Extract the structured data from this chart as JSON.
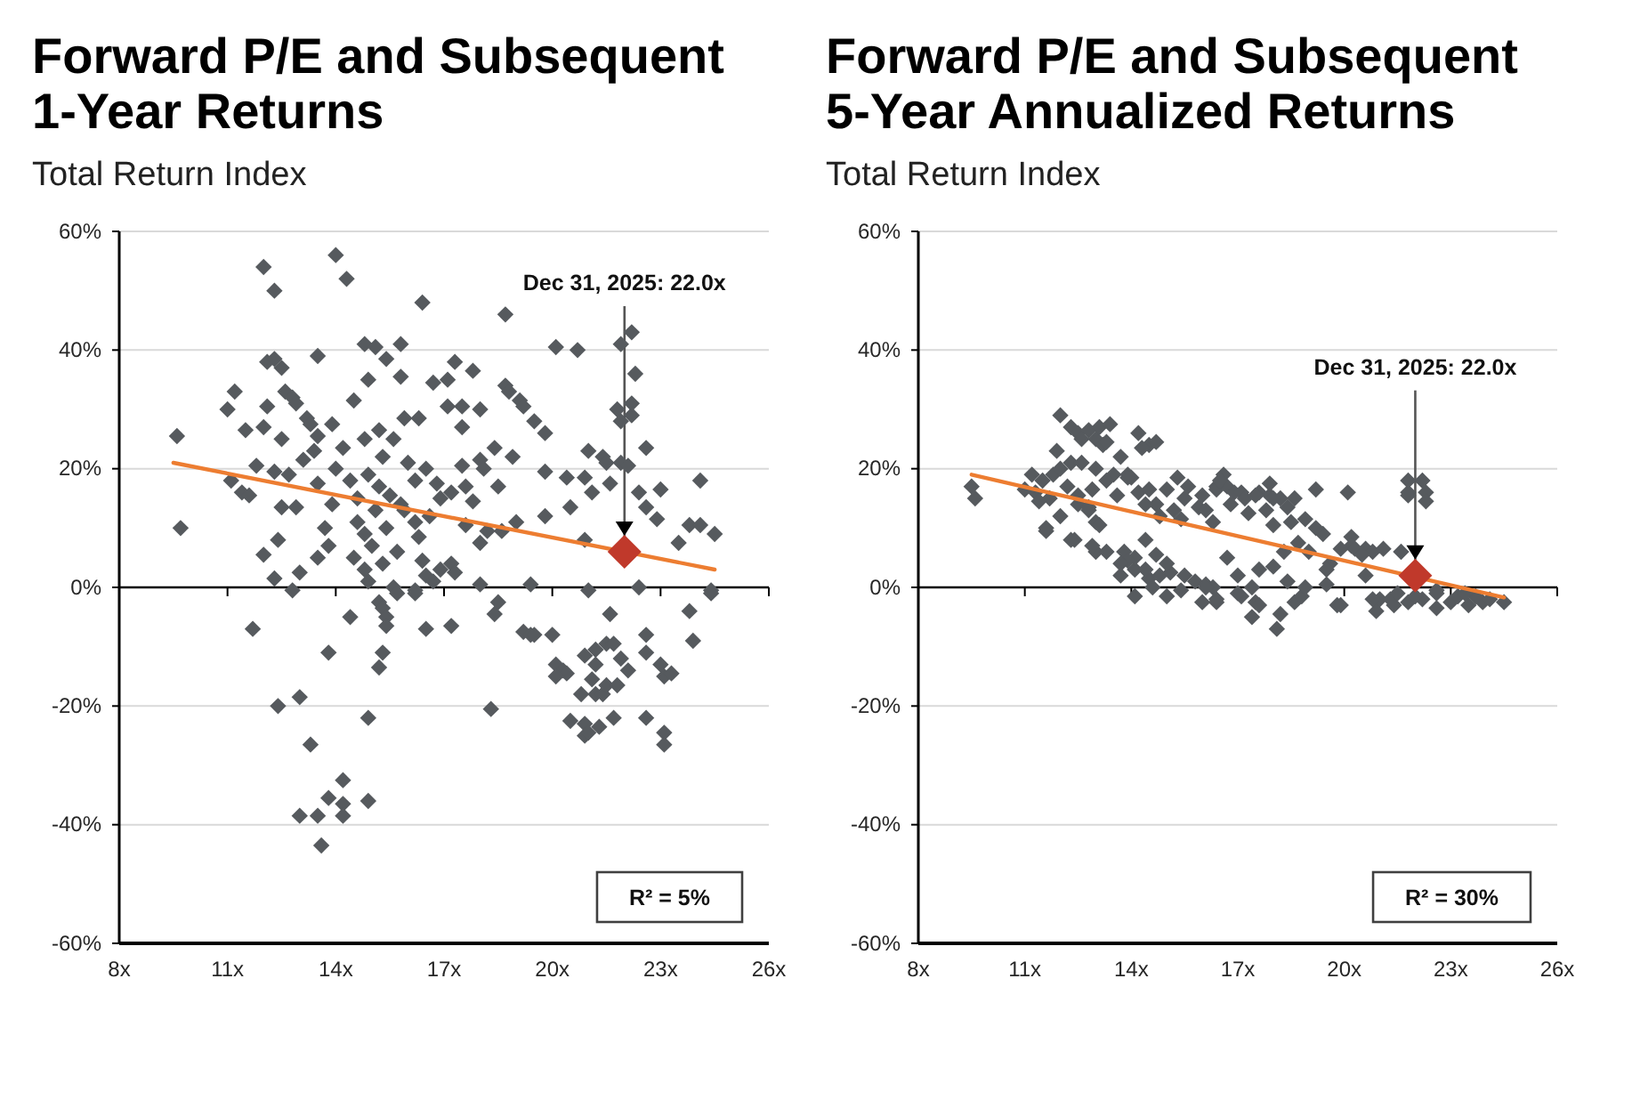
{
  "chart_data": [
    {
      "type": "scatter",
      "title": "Forward P/E and Subsequent 1-Year Returns",
      "subtitle": "Total Return Index",
      "xlim": [
        8,
        26
      ],
      "xticks": [
        {
          "value": 8,
          "label": "8x"
        },
        {
          "value": 11,
          "label": "11x"
        },
        {
          "value": 14,
          "label": "14x"
        },
        {
          "value": 17,
          "label": "17x"
        },
        {
          "value": 20,
          "label": "20x"
        },
        {
          "value": 23,
          "label": "23x"
        },
        {
          "value": 26,
          "label": "26x"
        }
      ],
      "ylim": [
        -60,
        60
      ],
      "yticks": [
        {
          "value": -60,
          "label": "-60%"
        },
        {
          "value": -40,
          "label": "-40%"
        },
        {
          "value": -20,
          "label": "-20%"
        },
        {
          "value": 0,
          "label": "0%"
        },
        {
          "value": 20,
          "label": "20%"
        },
        {
          "value": 40,
          "label": "40%"
        },
        {
          "value": 60,
          "label": "60%"
        }
      ],
      "grid": "y",
      "marker": "diamond",
      "series": [
        {
          "type": "scatter",
          "color": "#565a5e",
          "x": [
            14.0,
            12.0,
            14.3,
            12.3,
            16.4,
            18.7,
            22.2,
            21.9,
            20.1,
            20.7,
            14.8,
            15.1,
            15.8,
            13.5,
            15.4,
            12.1,
            12.3,
            12.5,
            17.3,
            17.8,
            22.3,
            17.1,
            16.7,
            15.8,
            14.9,
            11.2,
            18.7,
            18.8,
            19.1,
            19.2,
            12.6,
            12.8,
            14.5,
            11.0,
            12.1,
            12.9,
            13.2,
            13.3,
            11.5,
            12.0,
            12.5,
            13.5,
            13.9,
            15.2,
            15.9,
            16.3,
            17.1,
            17.5,
            18.0,
            19.5,
            19.8,
            21.8,
            22.2,
            22.2,
            21.9,
            14.8,
            15.6,
            17.5,
            9.6,
            9.7,
            22.6,
            21.0,
            21.4,
            21.5,
            21.9,
            22.1,
            18.4,
            18.0,
            18.9,
            19.8,
            20.4,
            20.9,
            21.6,
            21.1,
            22.4,
            23.0,
            24.1,
            22.6,
            22.9,
            20.5,
            19.8,
            20.9,
            23.5,
            23.8,
            24.1,
            24.5,
            22.4,
            24.4,
            19.4,
            18.0,
            21.0,
            12.0,
            12.3,
            12.8,
            13.0,
            13.5,
            12.4,
            11.1,
            11.4,
            11.6,
            11.8,
            12.3,
            12.7,
            13.1,
            13.5,
            13.9,
            12.5,
            12.9,
            14.6,
            14.8,
            14.5,
            14.8,
            14.9,
            15.6,
            16.2,
            16.4,
            16.5,
            16.7,
            16.9,
            17.2,
            17.3,
            16.3,
            16.2,
            15.9,
            16.6,
            16.9,
            16.8,
            17.2,
            17.6,
            17.8,
            18.1,
            18.2,
            18.6,
            18.0,
            14.0,
            14.4,
            14.9,
            15.2,
            15.5,
            15.8,
            15.1,
            14.6,
            13.4,
            14.2,
            15.3,
            16.0,
            16.5,
            16.2,
            15.4,
            15.0,
            15.7,
            17.6,
            19.0,
            17.5,
            18.5,
            13.7,
            13.8,
            15.3,
            11.7,
            12.4,
            13.0,
            13.8,
            14.4,
            13.3,
            14.2,
            13.8,
            14.2,
            14.2,
            13.0,
            13.5,
            13.6,
            14.9,
            14.9,
            15.3,
            15.2,
            15.2,
            15.3,
            15.4,
            15.4,
            15.7,
            16.2,
            16.5,
            17.2,
            18.3,
            18.5,
            18.4,
            19.2,
            19.4,
            19.5,
            20.0,
            20.1,
            20.3,
            20.4,
            20.1,
            20.9,
            21.2,
            21.2,
            21.6,
            21.5,
            21.7,
            21.1,
            20.8,
            21.2,
            21.4,
            21.5,
            21.8,
            21.9,
            22.1,
            22.6,
            22.6,
            23.0,
            23.1,
            23.3,
            23.8,
            23.9,
            20.5,
            20.9,
            20.9,
            21.0,
            21.3,
            21.7,
            22.6,
            23.1,
            23.1,
            24.4
          ],
          "values": [
            56,
            54,
            52,
            50,
            48,
            46,
            43,
            41,
            40.5,
            40,
            41,
            40.5,
            41,
            39,
            38.5,
            38,
            38.5,
            37,
            38,
            36.5,
            36,
            35,
            34.5,
            35.5,
            35,
            33,
            34,
            33,
            31.5,
            30.5,
            33,
            32,
            31.5,
            30,
            30.5,
            31,
            28.5,
            27.5,
            26.5,
            27,
            25,
            25.5,
            27.5,
            26.5,
            28.5,
            28.5,
            30.5,
            30.5,
            30,
            28,
            26,
            30,
            29,
            31,
            28,
            25,
            25,
            27,
            25.5,
            10,
            23.5,
            23,
            22,
            21,
            21,
            20.5,
            23.5,
            21.5,
            22,
            19.5,
            18.5,
            18.5,
            17.5,
            16,
            16,
            16.5,
            18,
            13.5,
            11.5,
            13.5,
            12,
            8,
            7.5,
            10.5,
            10.5,
            9,
            0,
            -0.5,
            0.5,
            0.5,
            -0.5,
            5.5,
            1.5,
            -0.5,
            2.5,
            5,
            8,
            18,
            16,
            15.5,
            20.5,
            19.5,
            19,
            21.5,
            17.5,
            14,
            13.5,
            13.5,
            11,
            9,
            5,
            3,
            1,
            0,
            -0.5,
            4.5,
            2,
            1,
            3,
            4,
            2.5,
            8.5,
            11,
            13,
            12,
            15,
            17.5,
            16,
            17,
            14.5,
            20,
            9.5,
            9.5,
            7.5,
            20,
            18,
            19,
            17,
            15.5,
            14,
            13,
            15,
            23,
            23.5,
            22,
            21,
            20,
            18,
            10,
            7,
            6,
            10.5,
            11,
            20.5,
            17,
            10,
            7,
            4,
            -7,
            -20,
            -18.5,
            -11,
            -5,
            -26.5,
            -32.5,
            -35.5,
            -36.5,
            -38.5,
            -38.5,
            -38.5,
            -43.5,
            -36,
            -22,
            -11,
            -13.5,
            -2.5,
            -3.5,
            -5,
            -6.5,
            -1,
            -1,
            -7,
            -6.5,
            -20.5,
            -2.5,
            -4.5,
            -7.5,
            -8,
            -8,
            -8,
            -13,
            -14,
            -14.5,
            -15,
            -11.5,
            -10.5,
            -13,
            -4.5,
            -9.5,
            -9.5,
            -15.5,
            -18,
            -18,
            -18,
            -16.5,
            -16.5,
            -12,
            -14,
            -8,
            -11,
            -13,
            -15,
            -14.5,
            -4,
            -9,
            -22.5,
            -23,
            -25,
            -24.5,
            -23.5,
            -22,
            -22,
            -24.5,
            -26.5,
            -1
          ]
        },
        {
          "type": "line",
          "color": "#ed7d31",
          "marker": "none",
          "x": [
            9.5,
            24.5
          ],
          "values": [
            21,
            3
          ]
        },
        {
          "type": "scatter",
          "color": "#c0392b",
          "x": [
            22.0
          ],
          "values": [
            6
          ]
        }
      ],
      "annotations": [
        {
          "text": "Dec 31, 2025: 22.0x",
          "x": 22.0,
          "y": 6
        },
        "R² = 5%"
      ]
    },
    {
      "type": "scatter",
      "title": "Forward P/E and Subsequent 5-Year Annualized Returns",
      "subtitle": "Total Return Index",
      "xlim": [
        8,
        26
      ],
      "xticks": [
        {
          "value": 8,
          "label": "8x"
        },
        {
          "value": 11,
          "label": "11x"
        },
        {
          "value": 14,
          "label": "14x"
        },
        {
          "value": 17,
          "label": "17x"
        },
        {
          "value": 20,
          "label": "20x"
        },
        {
          "value": 23,
          "label": "23x"
        },
        {
          "value": 26,
          "label": "26x"
        }
      ],
      "ylim": [
        -60,
        60
      ],
      "yticks": [
        {
          "value": -60,
          "label": "-60%"
        },
        {
          "value": -40,
          "label": "-40%"
        },
        {
          "value": -20,
          "label": "-20%"
        },
        {
          "value": 0,
          "label": "0%"
        },
        {
          "value": 20,
          "label": "20%"
        },
        {
          "value": 40,
          "label": "40%"
        },
        {
          "value": 60,
          "label": "60%"
        }
      ],
      "grid": "y",
      "marker": "diamond",
      "series": [
        {
          "type": "scatter",
          "color": "#565a5e",
          "x": [
            9.5,
            9.6,
            11.2,
            11.0,
            11.3,
            11.5,
            11.7,
            11.4,
            12.0,
            11.9,
            12.3,
            12.5,
            12.6,
            12.8,
            13.0,
            13.1,
            13.2,
            13.4,
            13.3,
            12.3,
            13.7,
            14.2,
            14.5,
            14.7,
            13.5,
            13.9,
            14.0,
            11.6,
            12.0,
            12.4,
            13.0,
            12.5,
            12.8,
            13.0,
            16.6,
            16.4,
            16.7,
            16.9,
            17.1,
            17.6,
            17.9,
            18.2,
            18.6,
            19.2,
            20.1,
            21.8,
            22.2,
            22.3,
            22.3,
            21.8,
            19.4,
            20.2,
            20.2,
            20.6,
            20.8,
            21.6,
            20.6,
            19.6,
            19.0,
            18.7,
            18.3,
            18.0,
            17.4,
            19.5,
            13.7,
            14.1,
            14.5,
            14.8,
            15.1,
            15.5,
            15.8,
            16.1,
            16.3,
            14.1,
            13.8,
            14.1,
            15.0,
            16.0,
            16.4,
            17.1,
            17.4,
            17.5,
            18.2,
            18.1,
            18.6,
            18.8,
            19.8,
            20.9,
            21.0,
            21.4,
            21.8,
            22.2,
            22.6,
            23.0,
            23.5,
            23.9,
            24.5,
            22.6,
            23.2,
            23.7,
            13.9,
            14.2,
            14.5,
            14.7,
            15.0,
            15.2,
            15.5,
            15.9,
            16.1,
            16.4,
            16.5,
            17.2,
            17.5,
            17.8,
            18.0,
            18.0,
            18.5,
            18.9,
            19.2,
            19.5,
            19.9,
            20.3,
            20.5,
            21.1,
            21.8,
            13.9,
            13.7,
            14.4,
            16.1,
            16.4,
            17.0,
            17.6,
            18.9,
            19.9,
            21.3,
            11.6,
            12.3,
            12.2,
            12.5,
            12.8,
            13.1,
            12.9,
            13.3,
            14.3,
            21.5,
            22.6,
            22.0,
            20.8,
            23.4,
            24.1,
            11.8,
            12.0,
            12.6,
            13.0,
            13.3,
            12.9,
            13.6,
            14.4,
            15.3,
            15.6,
            16.0,
            16.8,
            17.3,
            17.9,
            18.4,
            14.8,
            15.4,
            16.3,
            14.4,
            14.7,
            15.0,
            16.7,
            17.6,
            17.0,
            18.4,
            14.6,
            15.4
          ],
          "values": [
            17,
            15,
            19,
            16.5,
            16,
            18,
            15,
            14.5,
            29,
            23,
            27,
            26,
            25,
            26.5,
            25,
            27,
            24,
            27.5,
            24.5,
            21,
            22,
            26,
            24,
            24.5,
            19,
            19,
            18.5,
            10,
            12,
            8,
            6,
            14,
            13,
            11,
            19,
            17,
            17,
            16,
            16,
            16,
            15.5,
            15,
            15,
            16.5,
            16,
            16,
            18,
            16,
            14.5,
            18,
            9,
            8.5,
            7,
            6.5,
            6,
            6,
            2,
            4,
            6,
            7.5,
            6,
            3.5,
            0,
            0.5,
            2,
            3,
            1.5,
            2,
            2.5,
            2,
            1,
            0.5,
            0,
            5,
            6,
            -1.5,
            -1.5,
            -2.5,
            -2.5,
            -1.5,
            -5,
            -2.5,
            -4.5,
            -7,
            -2.5,
            -1.5,
            -3,
            -4,
            -2,
            -3,
            -2.5,
            -2,
            -3.5,
            -2.5,
            -3,
            -2.5,
            -2.5,
            -1,
            -1.5,
            -1.5,
            18.5,
            16,
            16.5,
            14,
            16.5,
            13,
            15,
            13.5,
            13,
            16.5,
            18,
            15,
            15.5,
            13,
            15,
            10.5,
            11,
            11.5,
            10,
            3,
            6.5,
            6.5,
            5.5,
            6.5,
            15.5,
            4.5,
            4,
            3,
            0,
            -2,
            -1,
            -3,
            0,
            -3,
            -2,
            9.5,
            8,
            17,
            15.5,
            13.5,
            10.5,
            7,
            6,
            23.5,
            -1,
            -0.5,
            -1.5,
            -2,
            -1,
            -2,
            19,
            20,
            21,
            20,
            18,
            16.5,
            15.5,
            14,
            18.5,
            17,
            15.5,
            14,
            12.5,
            17.5,
            13.5,
            12,
            11.5,
            11,
            8,
            5.5,
            4,
            5,
            3,
            2,
            1,
            0,
            -0.5
          ]
        },
        {
          "type": "line",
          "color": "#ed7d31",
          "marker": "none",
          "x": [
            9.5,
            24.5
          ],
          "values": [
            19,
            -1.7
          ]
        },
        {
          "type": "scatter",
          "color": "#c0392b",
          "x": [
            22.0
          ],
          "values": [
            2
          ]
        }
      ],
      "annotations": [
        {
          "text": "Dec 31, 2025: 22.0x",
          "x": 22.0,
          "y": 2
        },
        "R² = 30%"
      ]
    }
  ]
}
